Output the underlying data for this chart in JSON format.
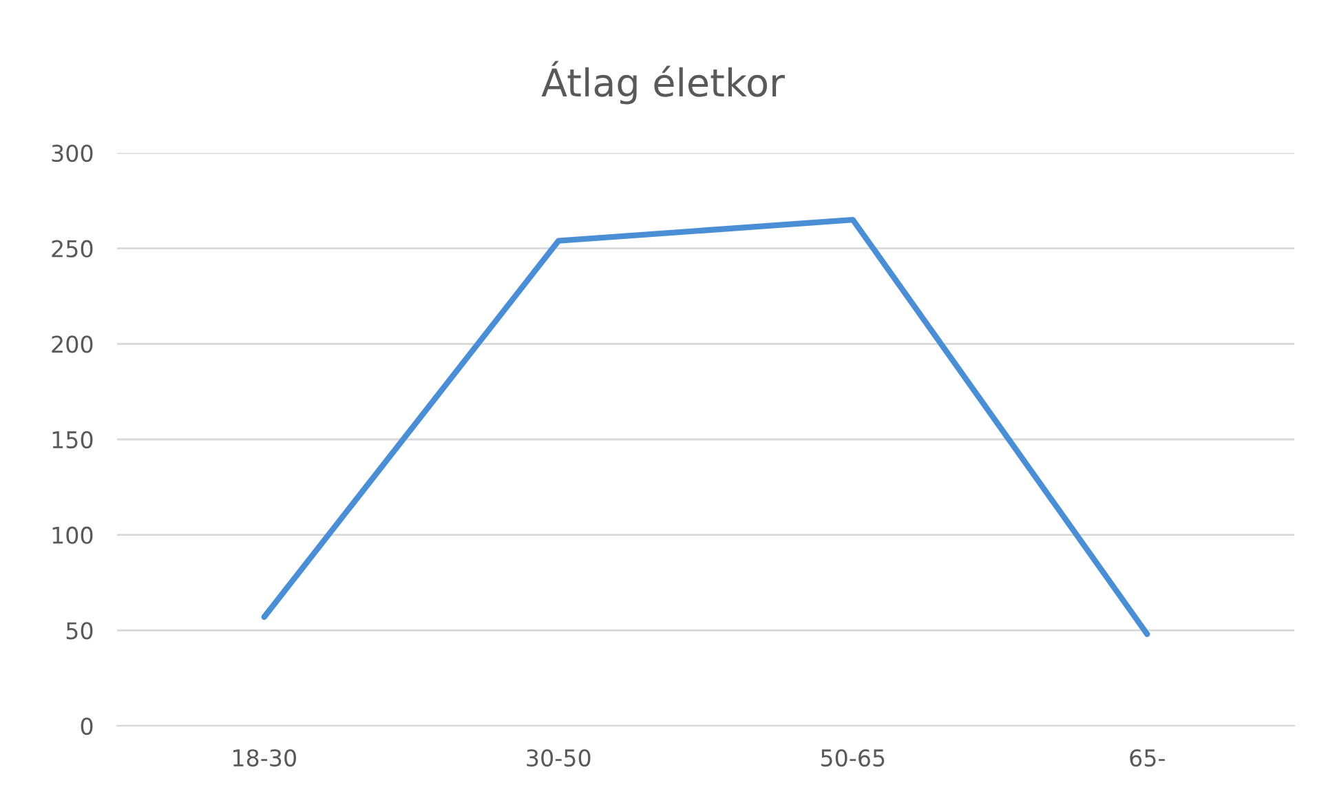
{
  "chart_data": {
    "type": "line",
    "title": "Átlag életkor",
    "categories": [
      "18-30",
      "30-50",
      "50-65",
      "65-"
    ],
    "series": [
      {
        "color": "#4a8fd6",
        "values": [
          57,
          254,
          265,
          48
        ]
      }
    ],
    "ylim": [
      0,
      300
    ],
    "yticks": [
      0,
      50,
      100,
      150,
      200,
      250,
      300
    ],
    "grid": "y",
    "marker": "none",
    "line_style": "solid"
  }
}
